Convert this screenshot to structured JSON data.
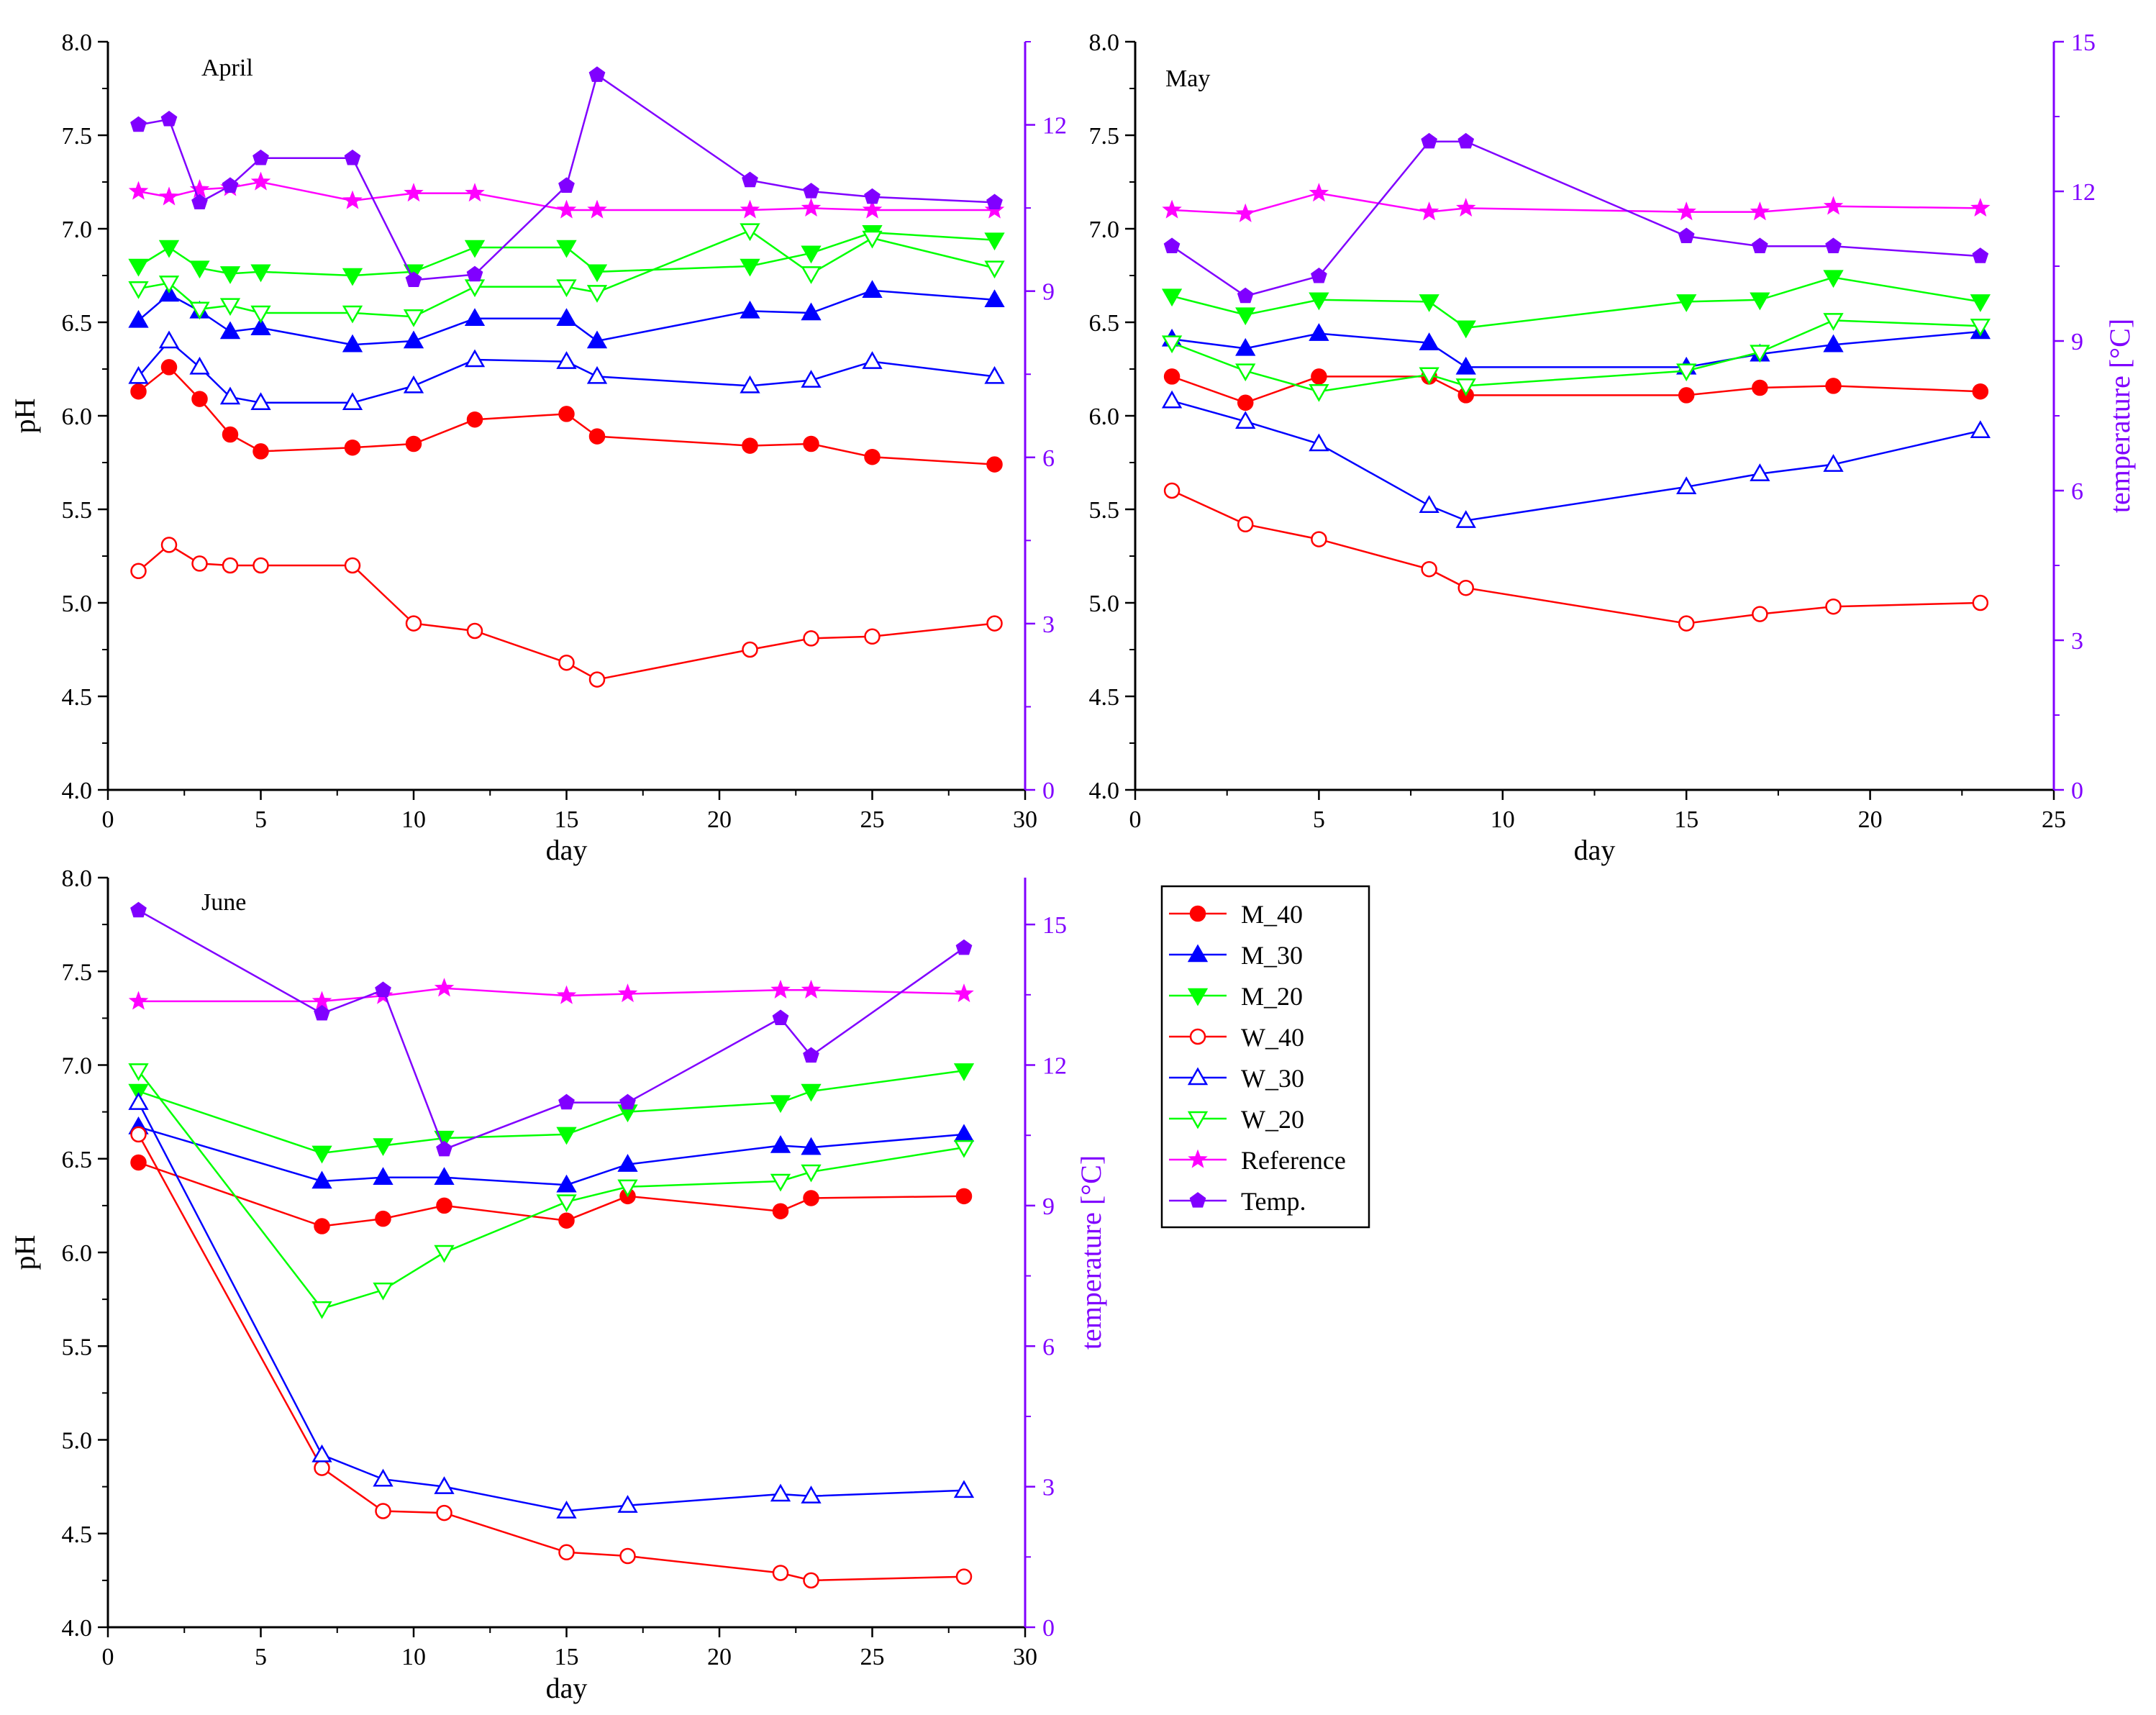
{
  "chart_data": [
    {
      "type": "line",
      "title": "April",
      "xlabel": "day",
      "ylabel": "pH",
      "y2label": "",
      "xlim": [
        0,
        30
      ],
      "ylim": [
        4.0,
        8.0
      ],
      "y2lim": [
        0,
        13.5
      ],
      "xticks": [
        0,
        5,
        10,
        15,
        20,
        25,
        30
      ],
      "yticks": [
        4.0,
        4.5,
        5.0,
        5.5,
        6.0,
        6.5,
        7.0,
        7.5,
        8.0
      ],
      "y2ticks": [
        0,
        3,
        6,
        9,
        12
      ],
      "series": [
        {
          "name": "M_40",
          "x": [
            1,
            2,
            3,
            4,
            5,
            8,
            10,
            12,
            15,
            16,
            21,
            23,
            25,
            29
          ],
          "values": [
            6.13,
            6.26,
            6.09,
            5.9,
            5.81,
            5.83,
            5.85,
            5.98,
            6.01,
            5.89,
            5.84,
            5.85,
            5.78,
            5.74
          ]
        },
        {
          "name": "M_30",
          "x": [
            1,
            2,
            3,
            4,
            5,
            8,
            10,
            12,
            15,
            16,
            21,
            23,
            25,
            29
          ],
          "values": [
            6.51,
            6.65,
            6.56,
            6.45,
            6.47,
            6.38,
            6.4,
            6.52,
            6.52,
            6.4,
            6.56,
            6.55,
            6.67,
            6.62
          ]
        },
        {
          "name": "M_20",
          "x": [
            1,
            2,
            3,
            4,
            5,
            8,
            10,
            12,
            15,
            16,
            21,
            23,
            25,
            29
          ],
          "values": [
            6.8,
            6.9,
            6.79,
            6.76,
            6.77,
            6.75,
            6.77,
            6.9,
            6.9,
            6.77,
            6.8,
            6.87,
            6.98,
            6.94
          ]
        },
        {
          "name": "W_40",
          "x": [
            1,
            2,
            3,
            4,
            5,
            8,
            10,
            12,
            15,
            16,
            21,
            23,
            25,
            29
          ],
          "values": [
            5.17,
            5.31,
            5.21,
            5.2,
            5.2,
            5.2,
            4.89,
            4.85,
            4.68,
            4.59,
            4.75,
            4.81,
            4.82,
            4.89
          ]
        },
        {
          "name": "W_30",
          "x": [
            1,
            2,
            3,
            4,
            5,
            8,
            10,
            12,
            15,
            16,
            21,
            23,
            25,
            29
          ],
          "values": [
            6.21,
            6.4,
            6.26,
            6.1,
            6.07,
            6.07,
            6.16,
            6.3,
            6.29,
            6.21,
            6.16,
            6.19,
            6.29,
            6.21
          ]
        },
        {
          "name": "W_20",
          "x": [
            1,
            2,
            3,
            4,
            5,
            8,
            10,
            12,
            15,
            16,
            21,
            23,
            25,
            29
          ],
          "values": [
            6.68,
            6.71,
            6.57,
            6.59,
            6.55,
            6.55,
            6.53,
            6.69,
            6.69,
            6.66,
            6.99,
            6.76,
            6.95,
            6.79
          ]
        },
        {
          "name": "Reference",
          "x": [
            1,
            2,
            3,
            4,
            5,
            8,
            10,
            12,
            15,
            16,
            21,
            23,
            25,
            29
          ],
          "values": [
            7.2,
            7.17,
            7.21,
            7.22,
            7.25,
            7.15,
            7.19,
            7.19,
            7.1,
            7.1,
            7.1,
            7.11,
            7.1,
            7.1
          ]
        },
        {
          "name": "Temp.",
          "axis": "y2",
          "x": [
            1,
            2,
            3,
            4,
            5,
            8,
            10,
            12,
            15,
            16,
            21,
            23,
            25,
            29
          ],
          "values": [
            12.0,
            12.1,
            10.6,
            10.9,
            11.4,
            11.4,
            9.2,
            9.3,
            10.9,
            12.9,
            11.0,
            10.8,
            10.7,
            10.6
          ]
        }
      ]
    },
    {
      "type": "line",
      "title": "May",
      "xlabel": "day",
      "ylabel": "",
      "y2label": "temperature [°C]",
      "xlim": [
        0,
        25
      ],
      "ylim": [
        4.0,
        8.0
      ],
      "y2lim": [
        0,
        15
      ],
      "xticks": [
        0,
        5,
        10,
        15,
        20,
        25
      ],
      "yticks": [
        4.0,
        4.5,
        5.0,
        5.5,
        6.0,
        6.5,
        7.0,
        7.5,
        8.0
      ],
      "y2ticks": [
        0,
        3,
        6,
        9,
        12,
        15
      ],
      "series": [
        {
          "name": "M_40",
          "x": [
            1,
            3,
            5,
            8,
            9,
            15,
            17,
            19,
            23
          ],
          "values": [
            6.21,
            6.07,
            6.21,
            6.21,
            6.11,
            6.11,
            6.15,
            6.16,
            6.13
          ]
        },
        {
          "name": "M_30",
          "x": [
            1,
            3,
            5,
            8,
            9,
            15,
            17,
            19,
            23
          ],
          "values": [
            6.41,
            6.36,
            6.44,
            6.39,
            6.26,
            6.26,
            6.33,
            6.38,
            6.45
          ]
        },
        {
          "name": "M_20",
          "x": [
            1,
            3,
            5,
            8,
            9,
            15,
            17,
            19,
            23
          ],
          "values": [
            6.64,
            6.54,
            6.62,
            6.61,
            6.47,
            6.61,
            6.62,
            6.74,
            6.61
          ]
        },
        {
          "name": "W_40",
          "x": [
            1,
            3,
            5,
            8,
            9,
            15,
            17,
            19,
            23
          ],
          "values": [
            5.6,
            5.42,
            5.34,
            5.18,
            5.08,
            4.89,
            4.94,
            4.98,
            5.0
          ]
        },
        {
          "name": "W_30",
          "x": [
            1,
            3,
            5,
            8,
            9,
            15,
            17,
            19,
            23
          ],
          "values": [
            6.08,
            5.97,
            5.85,
            5.52,
            5.44,
            5.62,
            5.69,
            5.74,
            5.92
          ]
        },
        {
          "name": "W_20",
          "x": [
            1,
            3,
            5,
            8,
            9,
            15,
            17,
            19,
            23
          ],
          "values": [
            6.39,
            6.24,
            6.13,
            6.22,
            6.16,
            6.24,
            6.34,
            6.51,
            6.48
          ]
        },
        {
          "name": "Reference",
          "x": [
            1,
            3,
            5,
            8,
            9,
            15,
            17,
            19,
            23
          ],
          "values": [
            7.1,
            7.08,
            7.19,
            7.09,
            7.11,
            7.09,
            7.09,
            7.12,
            7.11
          ]
        },
        {
          "name": "Temp.",
          "axis": "y2",
          "x": [
            1,
            3,
            5,
            8,
            9,
            15,
            17,
            19,
            23
          ],
          "values": [
            10.9,
            9.9,
            10.3,
            13.0,
            13.0,
            11.1,
            10.9,
            10.9,
            10.7
          ]
        }
      ]
    },
    {
      "type": "line",
      "title": "June",
      "xlabel": "day",
      "ylabel": "pH",
      "y2label": "temperature [°C]",
      "xlim": [
        0,
        30
      ],
      "ylim": [
        4.0,
        8.0
      ],
      "y2lim": [
        0,
        16
      ],
      "xticks": [
        0,
        5,
        10,
        15,
        20,
        25,
        30
      ],
      "yticks": [
        4.0,
        4.5,
        5.0,
        5.5,
        6.0,
        6.5,
        7.0,
        7.5,
        8.0
      ],
      "y2ticks": [
        0,
        3,
        6,
        9,
        12,
        15
      ],
      "series": [
        {
          "name": "M_40",
          "x": [
            1,
            7,
            9,
            11,
            15,
            17,
            22,
            23,
            28
          ],
          "values": [
            6.48,
            6.14,
            6.18,
            6.25,
            6.17,
            6.3,
            6.22,
            6.29,
            6.3
          ]
        },
        {
          "name": "M_30",
          "x": [
            1,
            7,
            9,
            11,
            15,
            17,
            22,
            23,
            28
          ],
          "values": [
            6.67,
            6.38,
            6.4,
            6.4,
            6.36,
            6.47,
            6.57,
            6.56,
            6.63
          ]
        },
        {
          "name": "M_20",
          "x": [
            1,
            7,
            9,
            11,
            15,
            17,
            22,
            23,
            28
          ],
          "values": [
            6.86,
            6.53,
            6.57,
            6.61,
            6.63,
            6.75,
            6.8,
            6.86,
            6.97
          ]
        },
        {
          "name": "W_40",
          "x": [
            1,
            7,
            9,
            11,
            15,
            17,
            22,
            23,
            28
          ],
          "values": [
            6.63,
            4.85,
            4.62,
            4.61,
            4.4,
            4.38,
            4.29,
            4.25,
            4.27
          ]
        },
        {
          "name": "W_30",
          "x": [
            1,
            7,
            9,
            11,
            15,
            17,
            22,
            23,
            28
          ],
          "values": [
            6.8,
            4.92,
            4.79,
            4.75,
            4.62,
            4.65,
            4.71,
            4.7,
            4.73
          ]
        },
        {
          "name": "W_20",
          "x": [
            1,
            7,
            9,
            11,
            15,
            17,
            22,
            23,
            28
          ],
          "values": [
            6.97,
            5.7,
            5.8,
            6.0,
            6.27,
            6.35,
            6.38,
            6.43,
            6.56
          ]
        },
        {
          "name": "Reference",
          "x": [
            1,
            7,
            9,
            11,
            15,
            17,
            22,
            23,
            28
          ],
          "values": [
            7.34,
            7.34,
            7.37,
            7.41,
            7.37,
            7.38,
            7.4,
            7.4,
            7.38
          ]
        },
        {
          "name": "Temp.",
          "axis": "y2",
          "x": [
            1,
            7,
            9,
            11,
            15,
            17,
            22,
            23,
            28
          ],
          "values": [
            15.3,
            13.1,
            13.6,
            10.2,
            11.2,
            11.2,
            13.0,
            12.2,
            14.5
          ]
        }
      ]
    }
  ],
  "legend": {
    "entries": [
      "M_40",
      "M_30",
      "M_20",
      "W_40",
      "W_30",
      "W_20",
      "Reference",
      "Temp."
    ]
  },
  "colors": {
    "M_40": "#ff0000",
    "M_30": "#0000ff",
    "M_20": "#00ff00",
    "W_40": "#ff0000",
    "W_30": "#0000ff",
    "W_20": "#00ff00",
    "Reference": "#ff00ff",
    "Temp.": "#8000ff",
    "axis": "#000000",
    "temp_axis": "#8000ff"
  },
  "markers": {
    "M_40": "circle-filled",
    "M_30": "triangle-up-filled",
    "M_20": "triangle-down-filled",
    "W_40": "circle-open",
    "W_30": "triangle-up-open",
    "W_20": "triangle-down-open",
    "Reference": "star-filled",
    "Temp.": "pentagon-filled"
  }
}
